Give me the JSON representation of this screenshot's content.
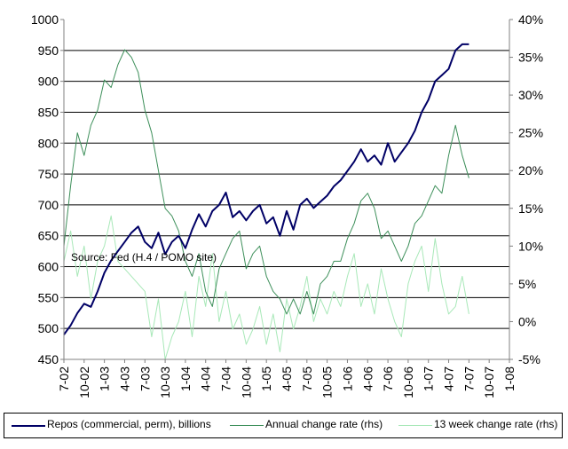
{
  "chart_data": {
    "type": "line",
    "title": "",
    "annotation": "Source: Fed (H.4 / POMO site)",
    "xlabel": "",
    "ylabel": "",
    "ylabel_right": "",
    "ylim": [
      450,
      1000
    ],
    "ylim_right": [
      -5,
      40
    ],
    "yticks_left": [
      "450",
      "500",
      "550",
      "600",
      "650",
      "700",
      "750",
      "800",
      "850",
      "900",
      "950",
      "1000"
    ],
    "yticks_right": [
      "-5%",
      "0%",
      "5%",
      "10%",
      "15%",
      "20%",
      "25%",
      "30%",
      "35%",
      "40%"
    ],
    "xticks": [
      "7-02",
      "10-02",
      "1-03",
      "4-03",
      "7-03",
      "10-03",
      "1-04",
      "4-04",
      "7-04",
      "10-04",
      "1-05",
      "4-05",
      "7-05",
      "10-05",
      "1-06",
      "4-06",
      "7-06",
      "10-06",
      "1-07",
      "4-07",
      "7-07",
      "10-07",
      "1-08"
    ],
    "xlim": [
      "2002-07",
      "2008-01"
    ],
    "grid": "horizontal",
    "legend": "bottom",
    "series": [
      {
        "name": "Repos (commercial, perm), billions",
        "axis": "left",
        "color": "#000066",
        "points": [
          [
            "2002-07",
            490
          ],
          [
            "2002-08",
            505
          ],
          [
            "2002-09",
            525
          ],
          [
            "2002-10",
            540
          ],
          [
            "2002-11",
            535
          ],
          [
            "2002-12",
            560
          ],
          [
            "2003-01",
            590
          ],
          [
            "2003-02",
            610
          ],
          [
            "2003-03",
            625
          ],
          [
            "2003-04",
            640
          ],
          [
            "2003-05",
            655
          ],
          [
            "2003-06",
            665
          ],
          [
            "2003-07",
            640
          ],
          [
            "2003-08",
            630
          ],
          [
            "2003-09",
            655
          ],
          [
            "2003-10",
            620
          ],
          [
            "2003-11",
            640
          ],
          [
            "2003-12",
            650
          ],
          [
            "2004-01",
            630
          ],
          [
            "2004-02",
            660
          ],
          [
            "2004-03",
            685
          ],
          [
            "2004-04",
            665
          ],
          [
            "2004-05",
            690
          ],
          [
            "2004-06",
            700
          ],
          [
            "2004-07",
            720
          ],
          [
            "2004-08",
            680
          ],
          [
            "2004-09",
            690
          ],
          [
            "2004-10",
            675
          ],
          [
            "2004-11",
            690
          ],
          [
            "2004-12",
            700
          ],
          [
            "2005-01",
            670
          ],
          [
            "2005-02",
            680
          ],
          [
            "2005-03",
            650
          ],
          [
            "2005-04",
            690
          ],
          [
            "2005-05",
            660
          ],
          [
            "2005-06",
            700
          ],
          [
            "2005-07",
            710
          ],
          [
            "2005-08",
            695
          ],
          [
            "2005-09",
            705
          ],
          [
            "2005-10",
            715
          ],
          [
            "2005-11",
            730
          ],
          [
            "2005-12",
            740
          ],
          [
            "2006-01",
            755
          ],
          [
            "2006-02",
            770
          ],
          [
            "2006-03",
            790
          ],
          [
            "2006-04",
            770
          ],
          [
            "2006-05",
            780
          ],
          [
            "2006-06",
            765
          ],
          [
            "2006-07",
            800
          ],
          [
            "2006-08",
            770
          ],
          [
            "2006-09",
            785
          ],
          [
            "2006-10",
            800
          ],
          [
            "2006-11",
            820
          ],
          [
            "2006-12",
            850
          ],
          [
            "2007-01",
            870
          ],
          [
            "2007-02",
            900
          ],
          [
            "2007-03",
            910
          ],
          [
            "2007-04",
            920
          ],
          [
            "2007-05",
            950
          ],
          [
            "2007-06",
            960
          ],
          [
            "2007-07",
            960
          ]
        ]
      },
      {
        "name": "Annual change rate (rhs)",
        "axis": "right",
        "color": "#3d8f5a",
        "points": [
          [
            "2002-07",
            10
          ],
          [
            "2002-08",
            18
          ],
          [
            "2002-09",
            25
          ],
          [
            "2002-10",
            22
          ],
          [
            "2002-11",
            26
          ],
          [
            "2002-12",
            28
          ],
          [
            "2003-01",
            32
          ],
          [
            "2003-02",
            31
          ],
          [
            "2003-03",
            34
          ],
          [
            "2003-04",
            36
          ],
          [
            "2003-05",
            35
          ],
          [
            "2003-06",
            33
          ],
          [
            "2003-07",
            28
          ],
          [
            "2003-08",
            25
          ],
          [
            "2003-09",
            20
          ],
          [
            "2003-10",
            15
          ],
          [
            "2003-11",
            14
          ],
          [
            "2003-12",
            12
          ],
          [
            "2004-01",
            8
          ],
          [
            "2004-02",
            6
          ],
          [
            "2004-03",
            9
          ],
          [
            "2004-04",
            4
          ],
          [
            "2004-05",
            2
          ],
          [
            "2004-06",
            7
          ],
          [
            "2004-07",
            9
          ],
          [
            "2004-08",
            11
          ],
          [
            "2004-09",
            12
          ],
          [
            "2004-10",
            7
          ],
          [
            "2004-11",
            9
          ],
          [
            "2004-12",
            10
          ],
          [
            "2005-01",
            6
          ],
          [
            "2005-02",
            4
          ],
          [
            "2005-03",
            3
          ],
          [
            "2005-04",
            1
          ],
          [
            "2005-05",
            3
          ],
          [
            "2005-06",
            1
          ],
          [
            "2005-07",
            4
          ],
          [
            "2005-08",
            1
          ],
          [
            "2005-09",
            5
          ],
          [
            "2005-10",
            6
          ],
          [
            "2005-11",
            8
          ],
          [
            "2005-12",
            8
          ],
          [
            "2006-01",
            11
          ],
          [
            "2006-02",
            13
          ],
          [
            "2006-03",
            16
          ],
          [
            "2006-04",
            17
          ],
          [
            "2006-05",
            15
          ],
          [
            "2006-06",
            11
          ],
          [
            "2006-07",
            12
          ],
          [
            "2006-08",
            10
          ],
          [
            "2006-09",
            8
          ],
          [
            "2006-10",
            10
          ],
          [
            "2006-11",
            13
          ],
          [
            "2006-12",
            14
          ],
          [
            "2007-01",
            16
          ],
          [
            "2007-02",
            18
          ],
          [
            "2007-03",
            17
          ],
          [
            "2007-04",
            22
          ],
          [
            "2007-05",
            26
          ],
          [
            "2007-06",
            22
          ],
          [
            "2007-07",
            19
          ]
        ]
      },
      {
        "name": "13 week change rate (rhs)",
        "axis": "right",
        "color": "#a8e8b8",
        "points": [
          [
            "2002-07",
            8
          ],
          [
            "2002-08",
            12
          ],
          [
            "2002-09",
            6
          ],
          [
            "2002-10",
            10
          ],
          [
            "2002-11",
            3
          ],
          [
            "2002-12",
            8
          ],
          [
            "2003-01",
            10
          ],
          [
            "2003-02",
            14
          ],
          [
            "2003-03",
            8
          ],
          [
            "2003-04",
            7
          ],
          [
            "2003-05",
            6
          ],
          [
            "2003-06",
            5
          ],
          [
            "2003-07",
            4
          ],
          [
            "2003-08",
            -2
          ],
          [
            "2003-09",
            3
          ],
          [
            "2003-10",
            -5
          ],
          [
            "2003-11",
            -2
          ],
          [
            "2003-12",
            0
          ],
          [
            "2004-01",
            4
          ],
          [
            "2004-02",
            -2
          ],
          [
            "2004-03",
            6
          ],
          [
            "2004-04",
            2
          ],
          [
            "2004-05",
            9
          ],
          [
            "2004-06",
            0
          ],
          [
            "2004-07",
            4
          ],
          [
            "2004-08",
            -1
          ],
          [
            "2004-09",
            1
          ],
          [
            "2004-10",
            -3
          ],
          [
            "2004-11",
            -1
          ],
          [
            "2004-12",
            2
          ],
          [
            "2005-01",
            -3
          ],
          [
            "2005-02",
            1
          ],
          [
            "2005-03",
            -4
          ],
          [
            "2005-04",
            3
          ],
          [
            "2005-05",
            -1
          ],
          [
            "2005-06",
            2
          ],
          [
            "2005-07",
            6
          ],
          [
            "2005-08",
            0
          ],
          [
            "2005-09",
            3
          ],
          [
            "2005-10",
            1
          ],
          [
            "2005-11",
            4
          ],
          [
            "2005-12",
            2
          ],
          [
            "2006-01",
            6
          ],
          [
            "2006-02",
            9
          ],
          [
            "2006-03",
            2
          ],
          [
            "2006-04",
            5
          ],
          [
            "2006-05",
            1
          ],
          [
            "2006-06",
            7
          ],
          [
            "2006-07",
            3
          ],
          [
            "2006-08",
            0
          ],
          [
            "2006-09",
            -2
          ],
          [
            "2006-10",
            5
          ],
          [
            "2006-11",
            8
          ],
          [
            "2006-12",
            10
          ],
          [
            "2007-01",
            4
          ],
          [
            "2007-02",
            11
          ],
          [
            "2007-03",
            5
          ],
          [
            "2007-04",
            1
          ],
          [
            "2007-05",
            2
          ],
          [
            "2007-06",
            6
          ],
          [
            "2007-07",
            1
          ]
        ]
      }
    ],
    "colors": {
      "plot_background": "#ffffff",
      "gridline": "#000000",
      "axis": "#808080"
    }
  }
}
